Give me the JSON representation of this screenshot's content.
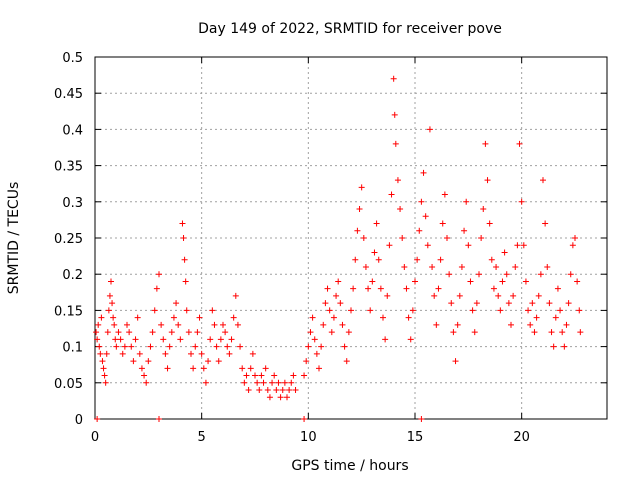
{
  "chart_data": {
    "type": "scatter",
    "title": "Day 149 of 2022, SRMTID for receiver pove",
    "xlabel": "GPS time / hours",
    "ylabel": "SRMTID / TECUs",
    "xlim": [
      0,
      24
    ],
    "ylim": [
      0,
      0.5
    ],
    "x_ticks": [
      0,
      5,
      10,
      15,
      20
    ],
    "y_ticks": [
      0,
      0.05,
      0.1,
      0.15,
      0.2,
      0.25,
      0.3,
      0.35,
      0.4,
      0.45,
      0.5
    ],
    "x_tick_labels": [
      "0",
      "5",
      "10",
      "15",
      "20"
    ],
    "y_tick_labels": [
      "0",
      "0.05",
      "0.1",
      "0.15",
      "0.2",
      "0.25",
      "0.3",
      "0.35",
      "0.4",
      "0.45",
      "0.5"
    ],
    "grid": true,
    "marker": "+",
    "color": "#ff0000",
    "series": [
      {
        "name": "SRMTID",
        "points": [
          [
            0.05,
            0.12
          ],
          [
            0.1,
            0.11
          ],
          [
            0.15,
            0.13
          ],
          [
            0.2,
            0.1
          ],
          [
            0.25,
            0.09
          ],
          [
            0.3,
            0.14
          ],
          [
            0.35,
            0.08
          ],
          [
            0.4,
            0.07
          ],
          [
            0.45,
            0.06
          ],
          [
            0.5,
            0.05
          ],
          [
            0.55,
            0.09
          ],
          [
            0.6,
            0.12
          ],
          [
            0.65,
            0.15
          ],
          [
            0.7,
            0.17
          ],
          [
            0.75,
            0.19
          ],
          [
            0.8,
            0.16
          ],
          [
            0.85,
            0.14
          ],
          [
            0.9,
            0.13
          ],
          [
            0.95,
            0.11
          ],
          [
            1.0,
            0.1
          ],
          [
            1.1,
            0.12
          ],
          [
            1.2,
            0.11
          ],
          [
            1.3,
            0.09
          ],
          [
            1.4,
            0.1
          ],
          [
            1.5,
            0.13
          ],
          [
            1.6,
            0.12
          ],
          [
            1.7,
            0.1
          ],
          [
            1.8,
            0.08
          ],
          [
            1.9,
            0.11
          ],
          [
            2.0,
            0.14
          ],
          [
            2.1,
            0.09
          ],
          [
            2.2,
            0.07
          ],
          [
            2.3,
            0.06
          ],
          [
            2.4,
            0.05
          ],
          [
            2.5,
            0.08
          ],
          [
            2.6,
            0.1
          ],
          [
            2.7,
            0.12
          ],
          [
            2.8,
            0.15
          ],
          [
            2.9,
            0.18
          ],
          [
            3.0,
            0.2
          ],
          [
            3.1,
            0.13
          ],
          [
            3.2,
            0.11
          ],
          [
            3.3,
            0.09
          ],
          [
            3.4,
            0.07
          ],
          [
            3.5,
            0.1
          ],
          [
            3.6,
            0.12
          ],
          [
            3.7,
            0.14
          ],
          [
            3.8,
            0.16
          ],
          [
            3.9,
            0.13
          ],
          [
            4.0,
            0.11
          ],
          [
            4.1,
            0.27
          ],
          [
            4.15,
            0.25
          ],
          [
            4.2,
            0.22
          ],
          [
            4.25,
            0.19
          ],
          [
            4.3,
            0.15
          ],
          [
            4.4,
            0.12
          ],
          [
            4.5,
            0.09
          ],
          [
            4.6,
            0.07
          ],
          [
            4.7,
            0.1
          ],
          [
            4.8,
            0.12
          ],
          [
            4.9,
            0.14
          ],
          [
            5.0,
            0.09
          ],
          [
            5.1,
            0.07
          ],
          [
            5.2,
            0.05
          ],
          [
            5.3,
            0.08
          ],
          [
            5.4,
            0.11
          ],
          [
            5.5,
            0.15
          ],
          [
            5.6,
            0.13
          ],
          [
            5.7,
            0.1
          ],
          [
            5.8,
            0.08
          ],
          [
            5.9,
            0.11
          ],
          [
            6.0,
            0.13
          ],
          [
            6.1,
            0.12
          ],
          [
            6.2,
            0.1
          ],
          [
            6.3,
            0.09
          ],
          [
            6.4,
            0.11
          ],
          [
            6.5,
            0.14
          ],
          [
            6.6,
            0.17
          ],
          [
            6.7,
            0.13
          ],
          [
            6.8,
            0.1
          ],
          [
            6.9,
            0.07
          ],
          [
            7.0,
            0.05
          ],
          [
            7.1,
            0.06
          ],
          [
            7.2,
            0.04
          ],
          [
            7.3,
            0.07
          ],
          [
            7.4,
            0.09
          ],
          [
            7.5,
            0.06
          ],
          [
            7.6,
            0.05
          ],
          [
            7.7,
            0.04
          ],
          [
            7.8,
            0.06
          ],
          [
            7.9,
            0.05
          ],
          [
            8.0,
            0.07
          ],
          [
            8.1,
            0.04
          ],
          [
            8.2,
            0.03
          ],
          [
            8.3,
            0.05
          ],
          [
            8.4,
            0.06
          ],
          [
            8.5,
            0.04
          ],
          [
            8.6,
            0.05
          ],
          [
            8.7,
            0.03
          ],
          [
            8.8,
            0.04
          ],
          [
            8.9,
            0.05
          ],
          [
            9.0,
            0.03
          ],
          [
            9.1,
            0.04
          ],
          [
            9.2,
            0.05
          ],
          [
            9.3,
            0.06
          ],
          [
            9.4,
            0.04
          ],
          [
            9.8,
            0.06
          ],
          [
            9.9,
            0.08
          ],
          [
            10.0,
            0.1
          ],
          [
            10.1,
            0.12
          ],
          [
            10.2,
            0.14
          ],
          [
            10.3,
            0.11
          ],
          [
            10.4,
            0.09
          ],
          [
            10.5,
            0.07
          ],
          [
            10.6,
            0.1
          ],
          [
            10.7,
            0.13
          ],
          [
            10.8,
            0.16
          ],
          [
            10.9,
            0.18
          ],
          [
            11.0,
            0.15
          ],
          [
            11.1,
            0.12
          ],
          [
            11.2,
            0.14
          ],
          [
            11.3,
            0.17
          ],
          [
            11.4,
            0.19
          ],
          [
            11.5,
            0.16
          ],
          [
            11.6,
            0.13
          ],
          [
            11.7,
            0.1
          ],
          [
            11.8,
            0.08
          ],
          [
            11.9,
            0.12
          ],
          [
            12.0,
            0.15
          ],
          [
            12.1,
            0.18
          ],
          [
            12.2,
            0.22
          ],
          [
            12.3,
            0.26
          ],
          [
            12.4,
            0.29
          ],
          [
            12.5,
            0.32
          ],
          [
            12.6,
            0.25
          ],
          [
            12.7,
            0.21
          ],
          [
            12.8,
            0.18
          ],
          [
            12.9,
            0.15
          ],
          [
            13.0,
            0.19
          ],
          [
            13.1,
            0.23
          ],
          [
            13.2,
            0.27
          ],
          [
            13.3,
            0.22
          ],
          [
            13.4,
            0.18
          ],
          [
            13.5,
            0.14
          ],
          [
            13.6,
            0.11
          ],
          [
            13.7,
            0.17
          ],
          [
            13.8,
            0.24
          ],
          [
            13.9,
            0.31
          ],
          [
            14.0,
            0.47
          ],
          [
            14.05,
            0.42
          ],
          [
            14.1,
            0.38
          ],
          [
            14.2,
            0.33
          ],
          [
            14.3,
            0.29
          ],
          [
            14.4,
            0.25
          ],
          [
            14.5,
            0.21
          ],
          [
            14.6,
            0.18
          ],
          [
            14.7,
            0.14
          ],
          [
            14.8,
            0.11
          ],
          [
            14.9,
            0.15
          ],
          [
            15.0,
            0.19
          ],
          [
            15.1,
            0.22
          ],
          [
            15.2,
            0.26
          ],
          [
            15.3,
            0.3
          ],
          [
            15.4,
            0.34
          ],
          [
            15.5,
            0.28
          ],
          [
            15.6,
            0.24
          ],
          [
            15.7,
            0.4
          ],
          [
            15.8,
            0.21
          ],
          [
            15.9,
            0.17
          ],
          [
            16.0,
            0.13
          ],
          [
            16.1,
            0.18
          ],
          [
            16.2,
            0.22
          ],
          [
            16.3,
            0.27
          ],
          [
            16.4,
            0.31
          ],
          [
            16.5,
            0.25
          ],
          [
            16.6,
            0.2
          ],
          [
            16.7,
            0.16
          ],
          [
            16.8,
            0.12
          ],
          [
            16.9,
            0.08
          ],
          [
            17.0,
            0.13
          ],
          [
            17.1,
            0.17
          ],
          [
            17.2,
            0.21
          ],
          [
            17.3,
            0.26
          ],
          [
            17.4,
            0.3
          ],
          [
            17.5,
            0.24
          ],
          [
            17.6,
            0.19
          ],
          [
            17.7,
            0.15
          ],
          [
            17.8,
            0.12
          ],
          [
            17.9,
            0.16
          ],
          [
            18.0,
            0.2
          ],
          [
            18.1,
            0.25
          ],
          [
            18.2,
            0.29
          ],
          [
            18.3,
            0.38
          ],
          [
            18.4,
            0.33
          ],
          [
            18.5,
            0.27
          ],
          [
            18.6,
            0.22
          ],
          [
            18.7,
            0.18
          ],
          [
            18.8,
            0.21
          ],
          [
            18.9,
            0.17
          ],
          [
            19.0,
            0.15
          ],
          [
            19.1,
            0.19
          ],
          [
            19.2,
            0.23
          ],
          [
            19.3,
            0.2
          ],
          [
            19.4,
            0.16
          ],
          [
            19.5,
            0.13
          ],
          [
            19.6,
            0.17
          ],
          [
            19.7,
            0.21
          ],
          [
            19.8,
            0.24
          ],
          [
            19.9,
            0.38
          ],
          [
            20.0,
            0.3
          ],
          [
            20.1,
            0.24
          ],
          [
            20.2,
            0.19
          ],
          [
            20.3,
            0.15
          ],
          [
            20.4,
            0.13
          ],
          [
            20.5,
            0.16
          ],
          [
            20.6,
            0.12
          ],
          [
            20.7,
            0.14
          ],
          [
            20.8,
            0.17
          ],
          [
            20.9,
            0.2
          ],
          [
            21.0,
            0.33
          ],
          [
            21.1,
            0.27
          ],
          [
            21.2,
            0.21
          ],
          [
            21.3,
            0.16
          ],
          [
            21.4,
            0.12
          ],
          [
            21.5,
            0.1
          ],
          [
            21.6,
            0.14
          ],
          [
            21.7,
            0.18
          ],
          [
            21.8,
            0.15
          ],
          [
            21.9,
            0.12
          ],
          [
            22.0,
            0.1
          ],
          [
            22.1,
            0.13
          ],
          [
            22.2,
            0.16
          ],
          [
            22.3,
            0.2
          ],
          [
            22.4,
            0.24
          ],
          [
            22.5,
            0.25
          ],
          [
            22.6,
            0.19
          ],
          [
            22.7,
            0.15
          ],
          [
            22.75,
            0.12
          ],
          [
            0.1,
            0.0
          ],
          [
            3.0,
            0.0
          ],
          [
            9.8,
            0.0
          ],
          [
            15.3,
            0.0
          ]
        ]
      }
    ]
  }
}
